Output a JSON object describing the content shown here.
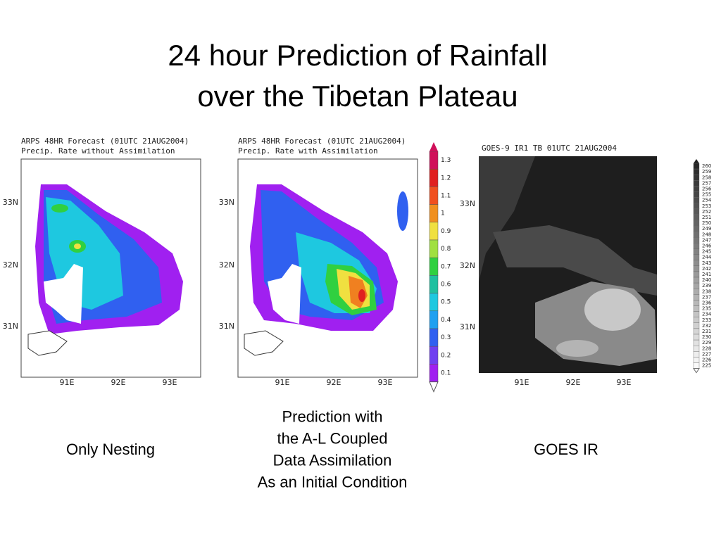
{
  "title": [
    "24 hour Prediction of Rainfall",
    "over the Tibetan Plateau"
  ],
  "panels": [
    {
      "header": [
        "ARPS 48HR Forecast (01UTC 21AUG2004)",
        "Precip. Rate without Assimilation"
      ],
      "lat_labels": [
        "33N",
        "32N",
        "31N"
      ],
      "lon_labels": [
        "91E",
        "92E",
        "93E"
      ]
    },
    {
      "header": [
        "ARPS 48HR Forecast (01UTC 21AUG2004)",
        "Precip. Rate with Assimilation"
      ],
      "lat_labels": [
        "33N",
        "32N",
        "31N"
      ],
      "lon_labels": [
        "91E",
        "92E",
        "93E"
      ]
    },
    {
      "header": [
        "GOES-9 IR1 TB 01UTC 21AUG2004"
      ],
      "lat_labels": [
        "33N",
        "32N",
        "31N"
      ],
      "lon_labels": [
        "91E",
        "92E",
        "93E"
      ]
    }
  ],
  "rain_colorbar": [
    "1.3",
    "1.2",
    "1.1",
    "1",
    "0.9",
    "0.8",
    "0.7",
    "0.6",
    "0.5",
    "0.4",
    "0.3",
    "0.2",
    "0.1"
  ],
  "tb_colorbar": [
    260,
    259,
    258,
    257,
    256,
    255,
    254,
    253,
    252,
    251,
    250,
    249,
    248,
    247,
    246,
    245,
    244,
    243,
    242,
    241,
    240,
    239,
    238,
    237,
    236,
    235,
    234,
    233,
    232,
    231,
    230,
    229,
    228,
    227,
    226,
    225
  ],
  "captions": [
    [
      "Only Nesting"
    ],
    [
      "Prediction with",
      "the A-L Coupled",
      "Data Assimilation",
      "As an Initial Condition"
    ],
    [
      "GOES IR"
    ]
  ]
}
